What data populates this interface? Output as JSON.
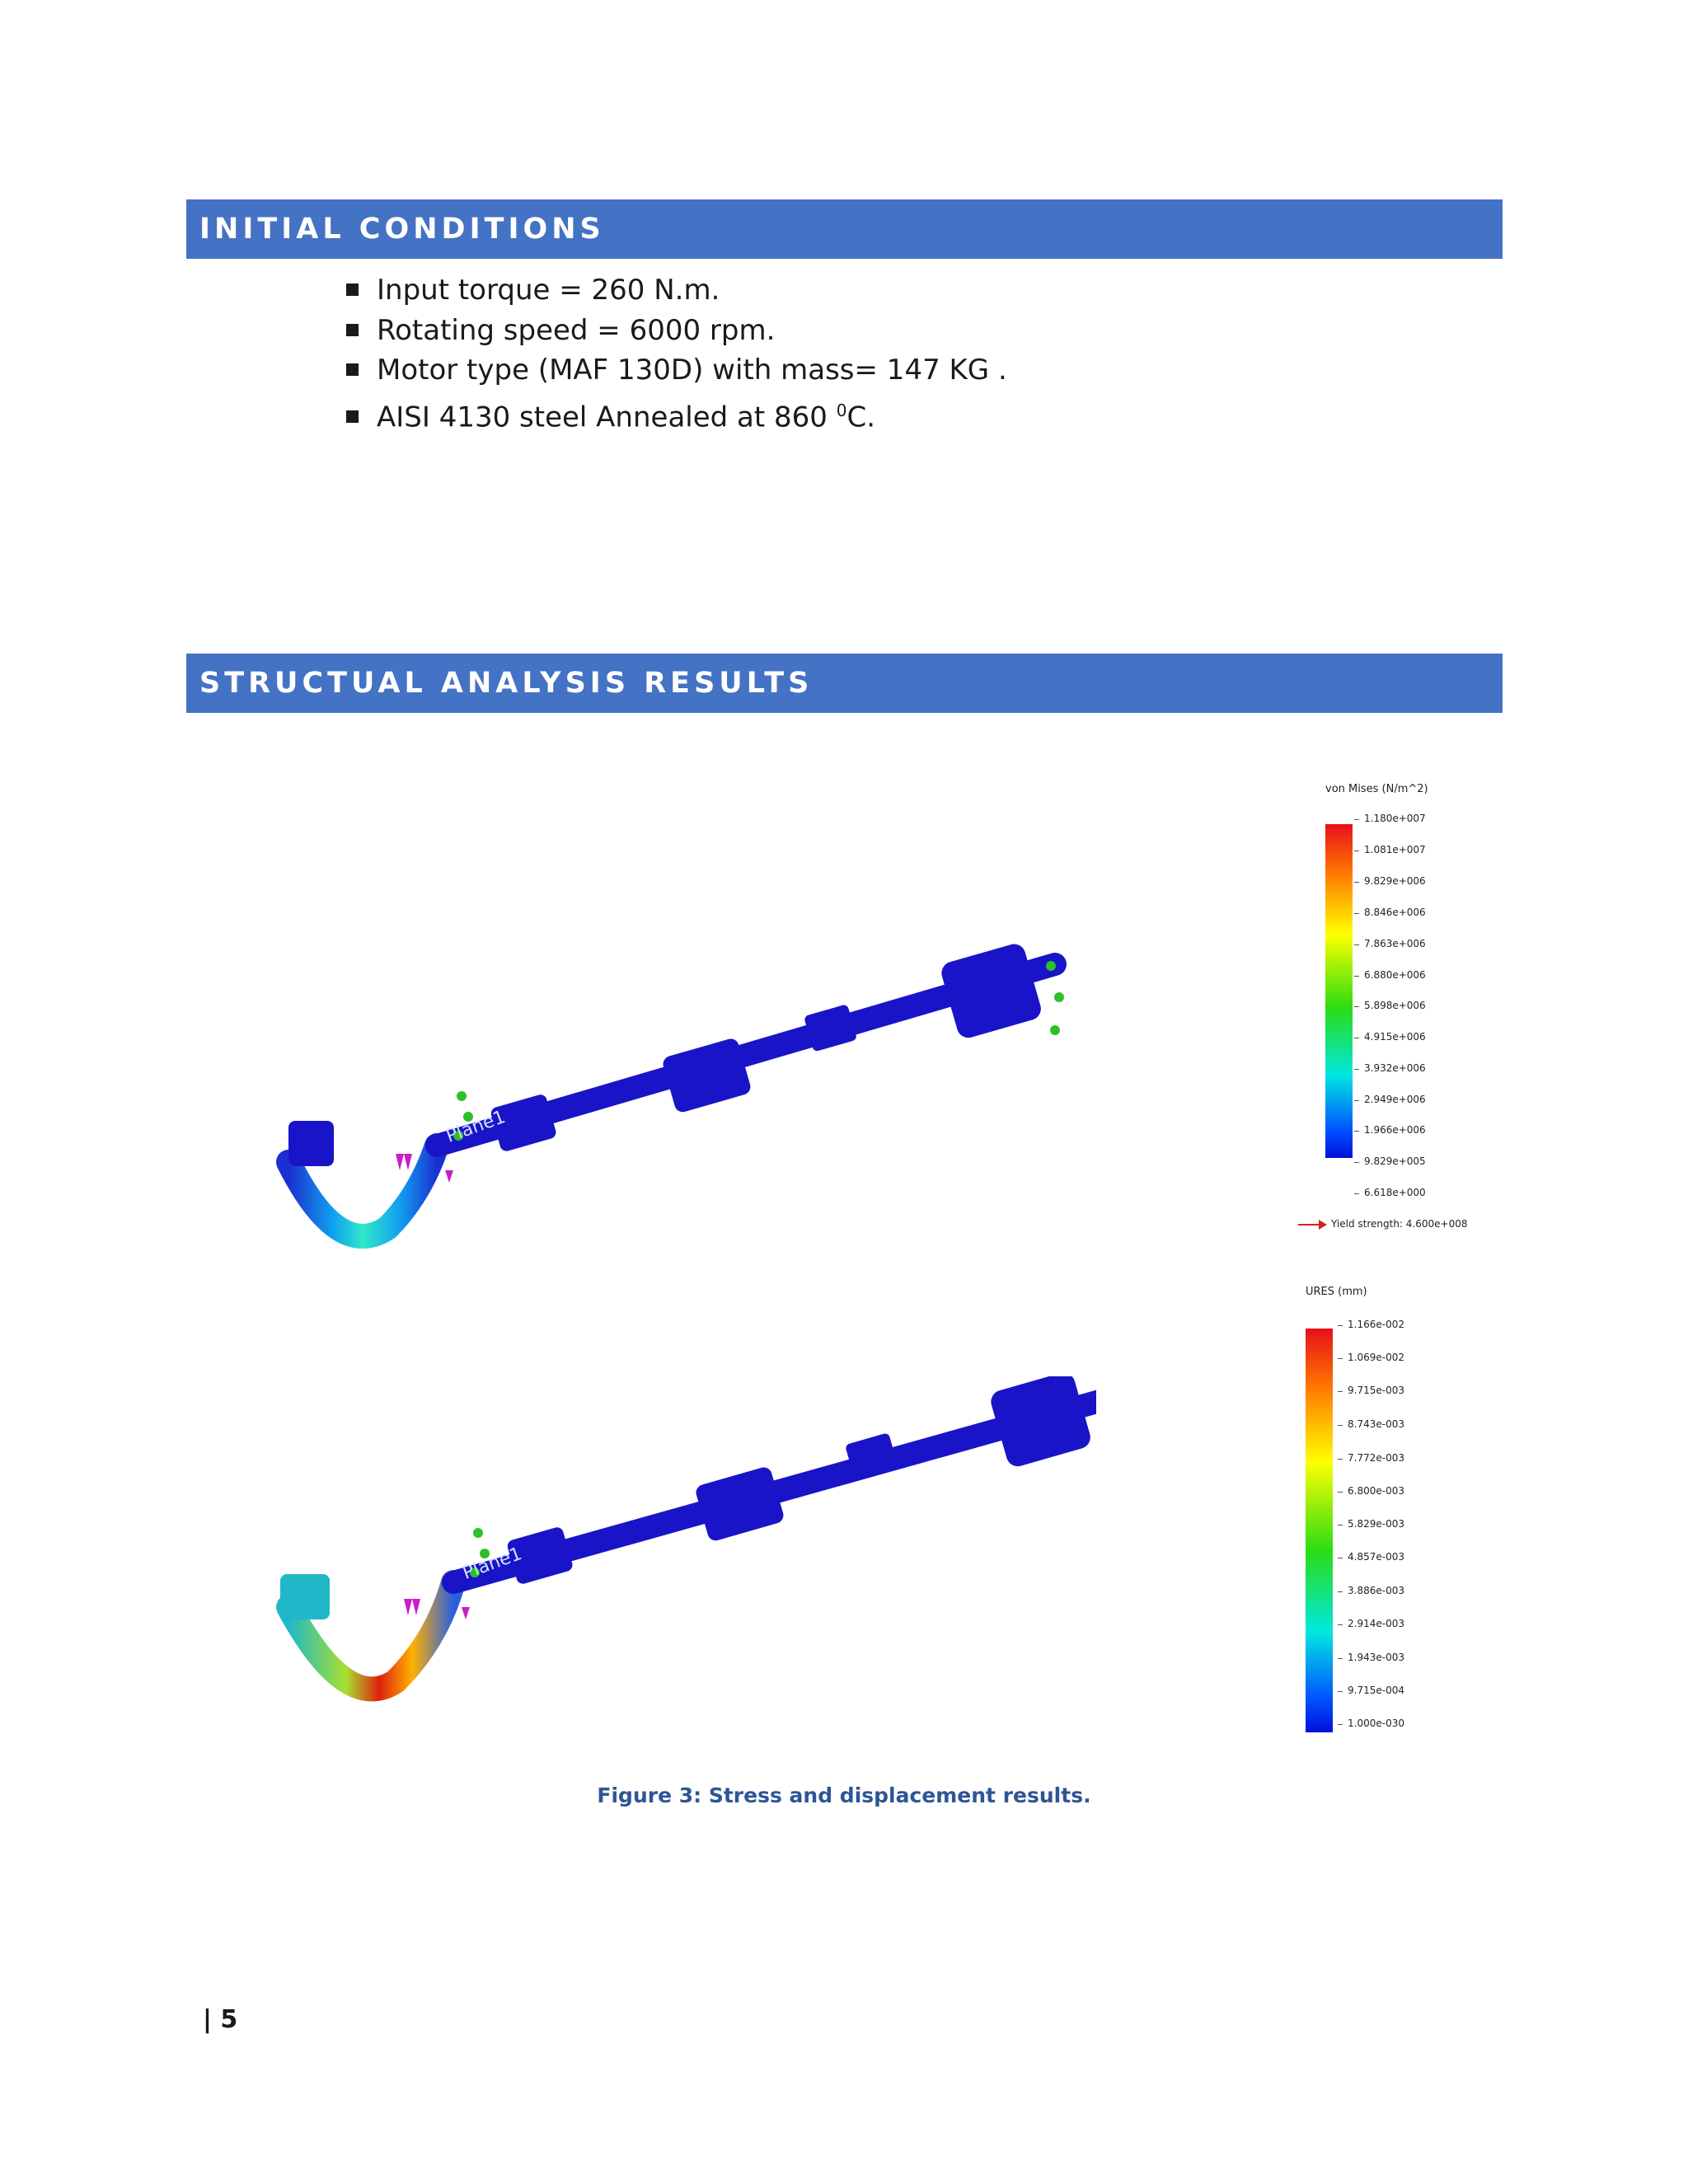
{
  "sections": {
    "initial_conditions": {
      "title": "INITIAL CONDITIONS",
      "items": [
        {
          "text": "Input torque = 260 N.m."
        },
        {
          "text": "Rotating speed = 6000 rpm."
        },
        {
          "text": "Motor type (MAF 130D) with mass= 147 KG ."
        },
        {
          "text_before": "AISI 4130 steel Annealed at 860",
          "superscript": "0",
          "text_after": "C."
        }
      ]
    },
    "results": {
      "title": "STRUCTUAL ANALYSIS RESULTS"
    }
  },
  "figure": {
    "model_label": "Plane1",
    "stress_legend": {
      "title": "von Mises (N/m^2)",
      "ticks": [
        "1.180e+007",
        "1.081e+007",
        "9.829e+006",
        "8.846e+006",
        "7.863e+006",
        "6.880e+006",
        "5.898e+006",
        "4.915e+006",
        "3.932e+006",
        "2.949e+006",
        "1.966e+006",
        "9.829e+005",
        "6.618e+000"
      ],
      "yield": "Yield strength: 4.600e+008"
    },
    "displacement_legend": {
      "title": "URES (mm)",
      "ticks": [
        "1.166e-002",
        "1.069e-002",
        "9.715e-003",
        "8.743e-003",
        "7.772e-003",
        "6.800e-003",
        "5.829e-003",
        "4.857e-003",
        "3.886e-003",
        "2.914e-003",
        "1.943e-003",
        "9.715e-004",
        "1.000e-030"
      ]
    },
    "colors": {
      "shaft": "#1a14c8",
      "fixture": "#2fbf2a",
      "load": "#c81ec8",
      "band": "#4472c4",
      "caption": "#2e5596"
    },
    "caption": "Figure 3: Stress and displacement results."
  },
  "footer": {
    "page": "| 5"
  }
}
